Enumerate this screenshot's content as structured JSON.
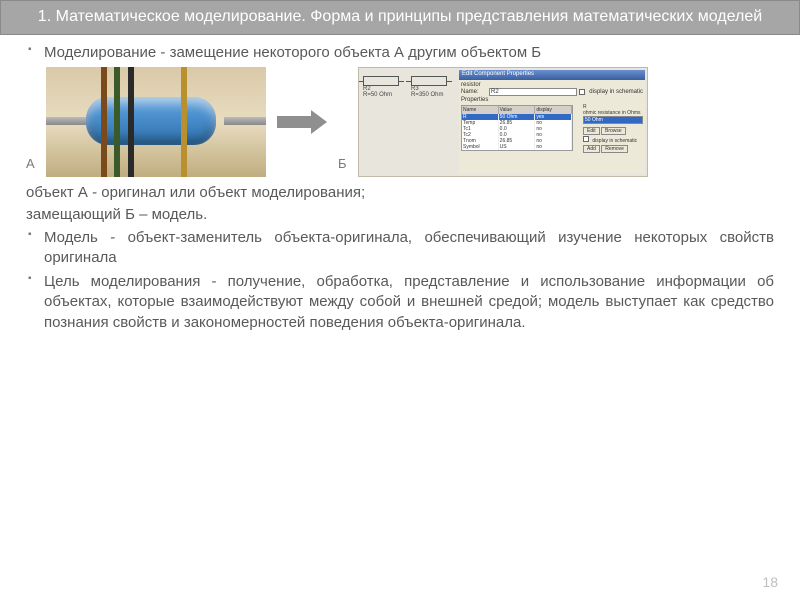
{
  "title": "1. Математическое моделирование. Форма и принципы представления математических моделей",
  "bullet1": "Моделирование - замещение некоторого объекта А другим объектом Б",
  "labels": {
    "a": "А",
    "b": "Б"
  },
  "plain1": "объект А - оригинал или объект моделирования;",
  "plain2": "замещающий Б – модель.",
  "bullet2": "Модель - объект-заменитель объекта-оригинала, обеспечивающий изучение некоторых свойств оригинала",
  "bullet3": "Цель моделирования - получение, обработка, представление и  использование  информации  об  объектах,  которые  взаимодействуют между собой и внешней средой; модель выступает как средство познания свойств и закономерностей поведения объекта-оригинала.",
  "page_number": "18",
  "schematic": {
    "r2": {
      "ref": "R2",
      "val": "R=50 Ohm"
    },
    "r3": {
      "ref": "R3",
      "val": "R=350 Ohm"
    }
  },
  "dialog": {
    "title": "Edit Component Properties",
    "desc": "resistor",
    "name_label": "Name:",
    "name_value": "R2",
    "display_schem": "display in schematic",
    "props_label": "Properties",
    "headers": {
      "c1": "Name",
      "c2": "Value",
      "c3": "display"
    },
    "rows": [
      {
        "n": "R",
        "v": "50 Ohm",
        "d": "yes",
        "sel": true
      },
      {
        "n": "Temp",
        "v": "26.85",
        "d": "no"
      },
      {
        "n": "Tc1",
        "v": "0.0",
        "d": "no"
      },
      {
        "n": "Tc2",
        "v": "0.0",
        "d": "no"
      },
      {
        "n": "Tnom",
        "v": "26.85",
        "d": "no"
      },
      {
        "n": "Symbol",
        "v": "US",
        "d": "no"
      }
    ],
    "right": {
      "desc": "R",
      "hint": "ohmic resistance in Ohms",
      "value": "50 Ohm",
      "edit": "Edit",
      "browse": "Browse",
      "add": "Add",
      "remove": "Remove"
    }
  },
  "colors": {
    "title_bg": "#a6a6a6",
    "title_text": "#ffffff",
    "body_text": "#595959",
    "arrow": "#8f8f8f",
    "resistor_blue": "#4a8fcf",
    "page_num": "#bfbfbf"
  }
}
